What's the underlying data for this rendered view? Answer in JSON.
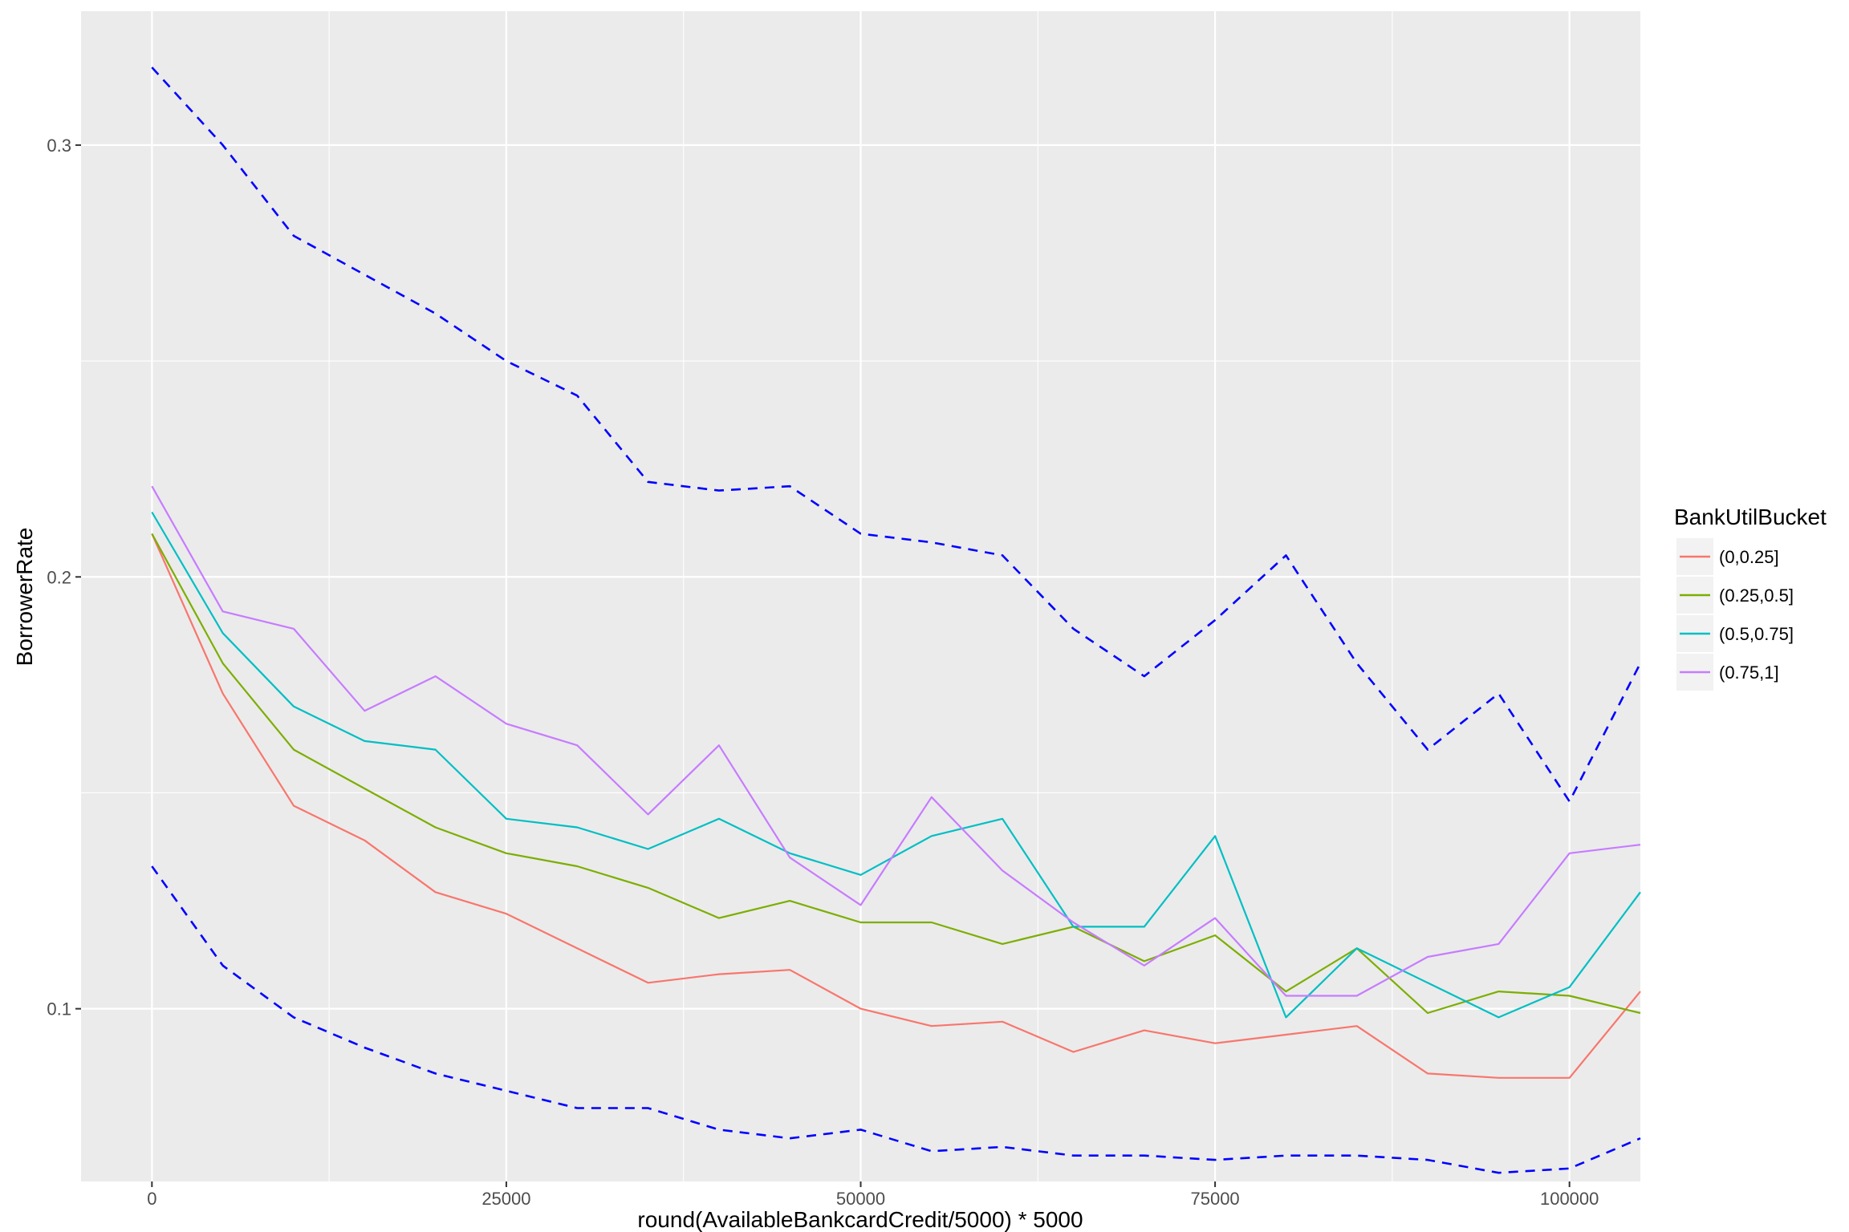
{
  "chart_data": {
    "type": "line",
    "xlabel": "round(AvailableBankcardCredit/5000) * 5000",
    "ylabel": "BorrowerRate",
    "xlim": [
      -5000,
      105000
    ],
    "ylim": [
      0.06,
      0.331
    ],
    "x_ticks": [
      0,
      25000,
      50000,
      75000,
      100000
    ],
    "x_tick_labels": [
      "0",
      "25000",
      "50000",
      "75000",
      "100000"
    ],
    "y_ticks": [
      0.1,
      0.2,
      0.3
    ],
    "y_tick_labels": [
      "0.1",
      "0.2",
      "0.3"
    ],
    "grid": true,
    "legend": {
      "title": "BankUtilBucket",
      "position": "right"
    },
    "x": [
      0,
      5000,
      10000,
      15000,
      20000,
      25000,
      30000,
      35000,
      40000,
      45000,
      50000,
      55000,
      60000,
      65000,
      70000,
      75000,
      80000,
      85000,
      90000,
      95000,
      100000,
      105000
    ],
    "series": [
      {
        "name": "(0,0.25]",
        "color": "#F8766D",
        "style": "solid",
        "values": [
          0.21,
          0.173,
          0.147,
          0.139,
          0.127,
          0.122,
          0.114,
          0.106,
          0.108,
          0.109,
          0.1,
          0.096,
          0.097,
          0.09,
          0.095,
          0.092,
          0.094,
          0.096,
          0.085,
          0.084,
          0.084,
          0.104
        ]
      },
      {
        "name": "(0.25,0.5]",
        "color": "#7CAE00",
        "style": "solid",
        "values": [
          0.21,
          0.18,
          0.16,
          0.151,
          0.142,
          0.136,
          0.133,
          0.128,
          0.121,
          0.125,
          0.12,
          0.12,
          0.115,
          0.119,
          0.111,
          0.117,
          0.104,
          0.114,
          0.099,
          0.104,
          0.103,
          0.099
        ]
      },
      {
        "name": "(0.5,0.75]",
        "color": "#00BFC4",
        "style": "solid",
        "values": [
          0.215,
          0.187,
          0.17,
          0.162,
          0.16,
          0.144,
          0.142,
          0.137,
          0.144,
          0.136,
          0.131,
          0.14,
          0.144,
          0.119,
          0.119,
          0.14,
          0.098,
          0.114,
          0.106,
          0.098,
          0.105,
          0.127
        ]
      },
      {
        "name": "(0.75,1]",
        "color": "#C77CFF",
        "style": "solid",
        "values": [
          0.221,
          0.192,
          0.188,
          0.169,
          0.177,
          0.166,
          0.161,
          0.145,
          0.161,
          0.135,
          0.124,
          0.149,
          0.132,
          0.12,
          0.11,
          0.121,
          0.103,
          0.103,
          0.112,
          0.115,
          0.136,
          0.138
        ]
      },
      {
        "name": "",
        "color": "#0000FF",
        "style": "dashed",
        "values": [
          0.318,
          0.3,
          0.279,
          0.27,
          0.261,
          0.25,
          0.242,
          0.222,
          0.22,
          0.221,
          0.21,
          0.208,
          0.205,
          0.188,
          0.177,
          0.19,
          0.205,
          0.18,
          0.16,
          0.173,
          0.148,
          0.18
        ]
      },
      {
        "name": "",
        "color": "#0000FF",
        "style": "dashed",
        "values": [
          0.133,
          0.11,
          0.098,
          0.091,
          0.085,
          0.081,
          0.077,
          0.077,
          0.072,
          0.07,
          0.072,
          0.067,
          0.068,
          0.066,
          0.066,
          0.065,
          0.066,
          0.066,
          0.065,
          0.062,
          0.063,
          0.07
        ]
      }
    ]
  }
}
